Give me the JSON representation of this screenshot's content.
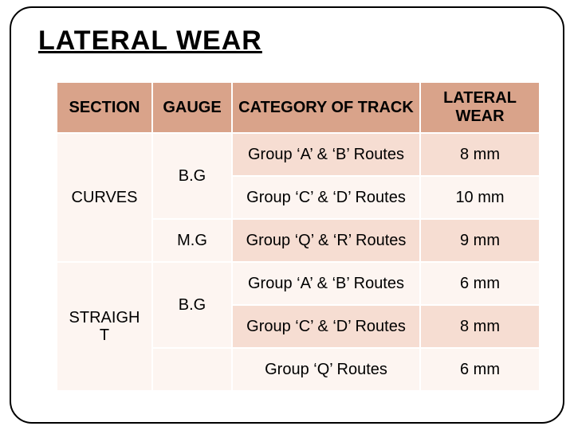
{
  "title": "LATERAL  WEAR",
  "headers": {
    "section": "SECTION",
    "gauge": "GAUGE",
    "category": "CATEGORY OF TRACK",
    "wear": "LATERAL WEAR"
  },
  "sections": [
    {
      "name": "CURVES"
    },
    {
      "name": "STRAIGHT"
    }
  ],
  "gauges": [
    {
      "label": "B.G"
    },
    {
      "label": "M.G"
    },
    {
      "label": "B.G"
    }
  ],
  "rows": [
    {
      "cat": "Group ‘A’ & ‘B’ Routes",
      "wear": "8 mm",
      "shade": "dark"
    },
    {
      "cat": "Group ‘C’ & ‘D’ Routes",
      "wear": "10 mm",
      "shade": "light"
    },
    {
      "cat": "Group ‘Q’ & ‘R’ Routes",
      "wear": "9 mm",
      "shade": "dark"
    },
    {
      "cat": "Group ‘A’ & ‘B’ Routes",
      "wear": "6 mm",
      "shade": "light"
    },
    {
      "cat": "Group ‘C’ & ‘D’ Routes",
      "wear": "8 mm",
      "shade": "dark"
    },
    {
      "cat": "Group ‘Q’ Routes",
      "wear": "6 mm",
      "shade": "light"
    }
  ],
  "colors": {
    "header_bg": "#d9a38a",
    "dark_row": "#f6ddd2",
    "light_row": "#fdf5f1",
    "border": "#ffffff",
    "text": "#000000",
    "frame_border": "#000000"
  }
}
